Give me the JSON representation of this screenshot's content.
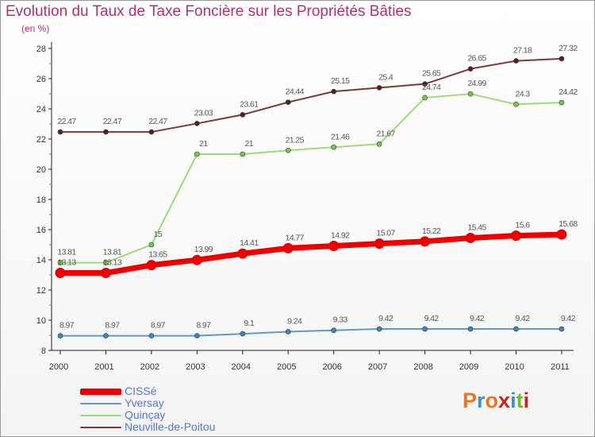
{
  "header": {
    "title": "Evolution du Taux de Taxe Foncière sur les Propriétés Bâties",
    "unit": "(en %)"
  },
  "logo": {
    "text": "Proxiti",
    "colors": [
      "#e87722",
      "#3a8fd8",
      "#e87722",
      "#c8202a",
      "#3a8fd8",
      "#7ab828",
      "#c8202a"
    ]
  },
  "chart_data": {
    "type": "line",
    "title": "Evolution du Taux de Taxe Foncière sur les Propriétés Bâties",
    "ylabel": "(en %)",
    "xlabel": "",
    "ylim": [
      8,
      28
    ],
    "yticks": [
      8,
      10,
      12,
      14,
      16,
      18,
      20,
      22,
      24,
      26,
      28
    ],
    "categories": [
      "2000",
      "2001",
      "2002",
      "2003",
      "2004",
      "2005",
      "2006",
      "2007",
      "2008",
      "2009",
      "2010",
      "2011"
    ],
    "series": [
      {
        "name": "CISSé",
        "color": "#ee0000",
        "markerColor": "#ee0000",
        "values": [
          13.13,
          13.13,
          13.65,
          13.99,
          14.41,
          14.77,
          14.92,
          15.07,
          15.22,
          15.45,
          15.6,
          15.68
        ],
        "labels": [
          "13.13",
          "13.13",
          "13.65",
          "13.99",
          "14.41",
          "14.77",
          "14.92",
          "15.07",
          "15.22",
          "15.45",
          "15.6",
          "15.68"
        ]
      },
      {
        "name": "Yversay",
        "color": "#6699bb",
        "markerColor": "#3d86c6",
        "values": [
          8.97,
          8.97,
          8.97,
          8.97,
          9.1,
          9.24,
          9.33,
          9.42,
          9.42,
          9.42,
          9.42,
          9.42
        ],
        "labels": [
          "8.97",
          "8.97",
          "8.97",
          "8.97",
          "9.1",
          "9.24",
          "9.33",
          "9.42",
          "9.42",
          "9.42",
          "9.42",
          "9.42"
        ]
      },
      {
        "name": "Quinçay",
        "color": "#99dd77",
        "markerColor": "#77cc44",
        "values": [
          13.81,
          13.81,
          15,
          21,
          21,
          21.25,
          21.46,
          21.67,
          24.74,
          24.99,
          24.3,
          24.42
        ],
        "labels": [
          "13.81",
          "13.81",
          "15",
          "21",
          "21",
          "21.25",
          "21.46",
          "21.67",
          "24.74",
          "24.99",
          "24.3",
          "24.42"
        ]
      },
      {
        "name": "Neuville-de-Poitou",
        "color": "#7a3a3a",
        "markerColor": "#5a1f1f",
        "values": [
          22.47,
          22.47,
          22.47,
          23.03,
          23.61,
          24.44,
          25.15,
          25.4,
          25.65,
          26.65,
          27.18,
          27.32
        ],
        "labels": [
          "22.47",
          "22.47",
          "22.47",
          "23.03",
          "23.61",
          "24.44",
          "25.15",
          "25.4",
          "25.65",
          "26.65",
          "27.18",
          "27.32"
        ]
      }
    ],
    "grid": false,
    "legend": "bottom-left"
  }
}
